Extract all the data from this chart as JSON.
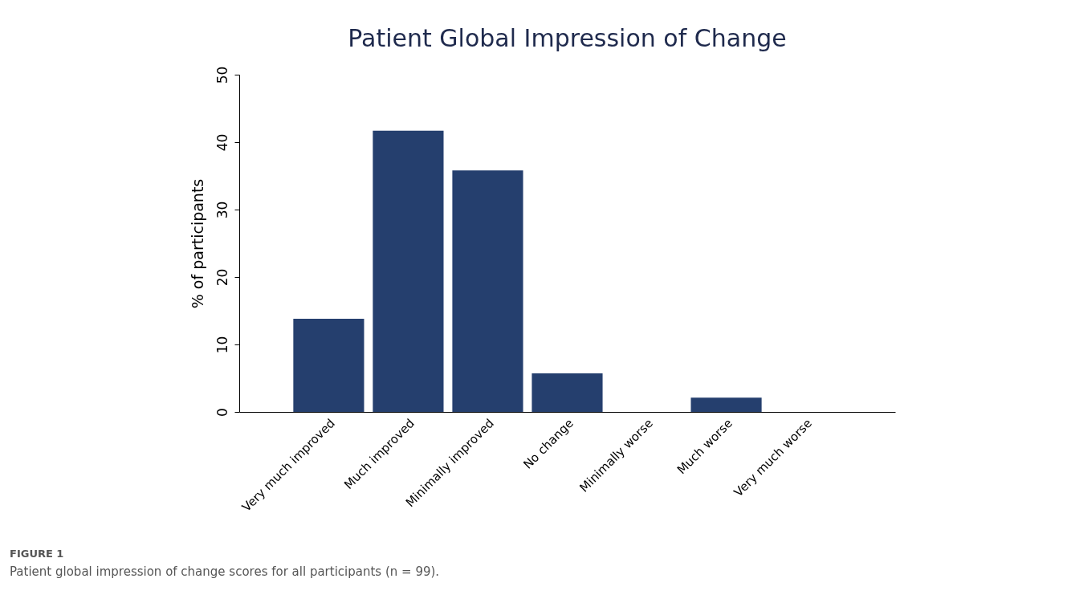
{
  "chart_data": {
    "type": "bar",
    "title": "Patient Global Impression of Change",
    "ylabel": "% of participants",
    "categories": [
      "Very much improved",
      "Much improved",
      "Minimally improved",
      "No change",
      "Minimally worse",
      "Much worse",
      "Very much worse"
    ],
    "values": [
      13.8,
      41.7,
      35.8,
      5.7,
      0,
      2.1,
      0
    ],
    "color": "#253f6e",
    "ylim": [
      0,
      50
    ],
    "yticks": [
      0,
      10,
      20,
      30,
      40,
      50
    ],
    "grid": false,
    "annotations": [
      "FIGURE 1",
      "Patient global impression of change scores for all participants (n = 99)."
    ]
  }
}
